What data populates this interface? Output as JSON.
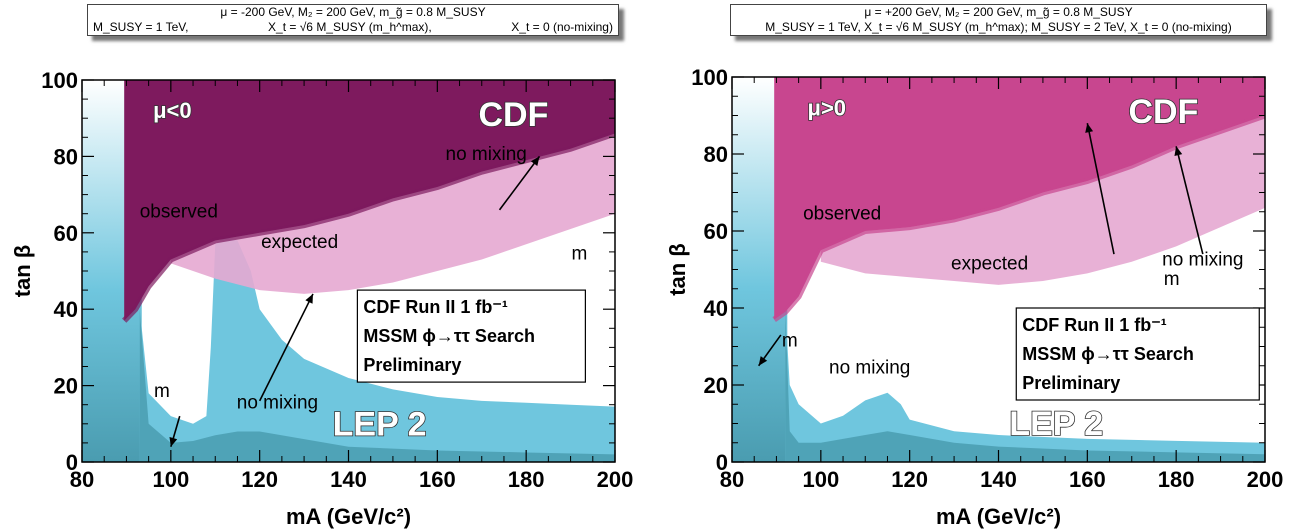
{
  "chart_data": [
    {
      "type": "area",
      "sign_label": "μ<0",
      "experiment_label": "CDF",
      "lep_label": "LEP 2",
      "param_line1": "μ = -200 GeV,  M₂ = 200 GeV,  m_g̃ = 0.8 M_SUSY",
      "param_line2_parts": [
        "M_SUSY = 1 TeV,",
        "X_t = √6 M_SUSY (m_h^max),",
        "X_t = 0  (no-mixing)"
      ],
      "xlabel": "m_A (GeV/c²)",
      "ylabel": "tan β",
      "xlim": [
        80,
        200
      ],
      "ylim": [
        0,
        100
      ],
      "xticks": [
        "80",
        "100",
        "120",
        "140",
        "160",
        "180",
        "200"
      ],
      "yticks": [
        "0",
        "20",
        "40",
        "60",
        "80",
        "100"
      ],
      "run_box": [
        "CDF Run II   1 fb⁻¹",
        "MSSM ϕ→ττ Search",
        "Preliminary"
      ],
      "annotations": {
        "observed": "observed",
        "expected": "expected",
        "no_mixing_top": "no mixing",
        "mhmax_top": "m",
        "no_mixing_bottom": "no mixing",
        "mhmax_bottom": "m"
      },
      "observed_boundary": {
        "x": [
          89.5,
          92,
          95,
          100,
          110,
          120,
          130,
          140,
          150,
          160,
          170,
          180,
          190,
          200
        ],
        "y": [
          37,
          40,
          46,
          53,
          58,
          60,
          62,
          65,
          69,
          72,
          76,
          79,
          82,
          86
        ]
      },
      "expected_lower": {
        "x": [
          100,
          110,
          120,
          130,
          140,
          150,
          160,
          170,
          180,
          190,
          200
        ],
        "y": [
          52,
          48,
          45,
          44,
          45,
          47,
          50,
          53,
          57,
          61,
          65
        ]
      },
      "lep_nomix_upper": {
        "x": [
          93,
          95,
          100,
          105,
          108,
          109,
          110,
          112,
          115,
          118,
          120,
          125,
          130,
          140,
          150,
          160,
          170,
          180,
          190,
          200
        ],
        "y": [
          40,
          18,
          12,
          10,
          12,
          30,
          57,
          59,
          58,
          50,
          40,
          32,
          27,
          22,
          19,
          17,
          16,
          15.5,
          15,
          14.5
        ]
      },
      "lep_mhmax_upper": {
        "x": [
          93,
          95,
          100,
          105,
          110,
          115,
          120,
          130,
          140,
          160,
          180,
          200
        ],
        "y": [
          40,
          10,
          5,
          5.5,
          7,
          8,
          8,
          6,
          4,
          3,
          2.5,
          2
        ]
      },
      "colors": {
        "observed": "#7e1a5e",
        "expected": "#e6a8d2",
        "lep_light": "#6fc6de",
        "lep_dark": "#4a9cb0",
        "gradient_top": "#ffffff"
      }
    },
    {
      "type": "area",
      "sign_label": "μ>0",
      "experiment_label": "CDF",
      "lep_label": "LEP 2",
      "param_line1": "μ = +200 GeV, M₂ = 200 GeV, m_g̃ = 0.8 M_SUSY",
      "param_line2_parts": [
        "M_SUSY = 1 TeV, X_t = √6 M_SUSY  (m_h^max);  M_SUSY = 2 TeV, X_t = 0  (no-mixing)"
      ],
      "xlabel": "m_A (GeV/c²)",
      "ylabel": "tan β",
      "xlim": [
        80,
        200
      ],
      "ylim": [
        0,
        100
      ],
      "xticks": [
        "80",
        "100",
        "120",
        "140",
        "160",
        "180",
        "200"
      ],
      "yticks": [
        "0",
        "20",
        "40",
        "60",
        "80",
        "100"
      ],
      "run_box": [
        "CDF Run II   1 fb⁻¹",
        "MSSM ϕ→ττ Search",
        "Preliminary"
      ],
      "annotations": {
        "observed": "observed",
        "expected": "expected",
        "no_mixing_top": "no mixing",
        "mhmax_top": "m",
        "no_mixing_bottom": "no mixing",
        "mhmax_bottom": "m"
      },
      "observed_boundary": {
        "x": [
          89.5,
          92,
          95,
          100,
          110,
          120,
          130,
          140,
          150,
          160,
          170,
          180,
          190,
          200
        ],
        "y": [
          37,
          39,
          43,
          55,
          60,
          61,
          63,
          66,
          70,
          73,
          77,
          82,
          86,
          90
        ]
      },
      "expected_lower": {
        "x": [
          100,
          110,
          120,
          130,
          140,
          150,
          160,
          170,
          180,
          190,
          200
        ],
        "y": [
          52,
          49,
          48,
          47,
          46,
          47,
          49,
          52,
          56,
          61,
          66
        ]
      },
      "lep_nomix_upper": {
        "x": [
          92,
          93,
          95,
          100,
          105,
          110,
          115,
          118,
          120,
          130,
          140,
          160,
          180,
          200
        ],
        "y": [
          40,
          20,
          15,
          10,
          12,
          16,
          18,
          15,
          11,
          8,
          7,
          6,
          5.5,
          5
        ]
      },
      "lep_mhmax_upper": {
        "x": [
          92,
          93,
          95,
          100,
          110,
          115,
          120,
          130,
          140,
          160,
          180,
          200
        ],
        "y": [
          40,
          8,
          5,
          5,
          7,
          8,
          7,
          5,
          4,
          3,
          2.5,
          2
        ]
      },
      "colors": {
        "observed": "#c8468f",
        "expected": "#e6a8d2",
        "lep_light": "#6fc6de",
        "lep_dark": "#4a9cb0",
        "gradient_top": "#ffffff"
      }
    }
  ]
}
